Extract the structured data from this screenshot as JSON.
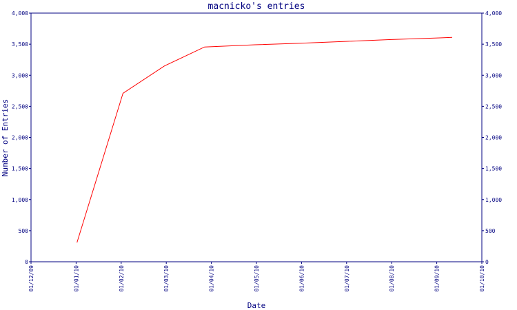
{
  "chart_data": {
    "type": "line",
    "title": "macnicko's entries",
    "xlabel": "Date",
    "ylabel": "Number of Entries",
    "x_tick_labels": [
      "01/12/09",
      "01/01/10",
      "01/02/10",
      "01/03/10",
      "01/04/10",
      "01/05/10",
      "01/06/10",
      "01/07/10",
      "01/08/10",
      "01/09/10",
      "01/10/10"
    ],
    "y_tick_labels": [
      "0",
      "500",
      "1,000",
      "1,500",
      "2,000",
      "2,500",
      "3,000",
      "3,500",
      "4,000"
    ],
    "y_ticks": [
      0,
      500,
      1000,
      1500,
      2000,
      2500,
      3000,
      3500,
      4000
    ],
    "ylim": [
      0,
      4000
    ],
    "xlim": [
      "2009-12-01",
      "2010-10-01"
    ],
    "grid": false,
    "series": [
      {
        "color": "#ff0000",
        "points": [
          {
            "x": "2010-01-01",
            "y": 310
          },
          {
            "x": "2010-02-01",
            "y": 2710
          },
          {
            "x": "2010-03-01",
            "y": 3150
          },
          {
            "x": "2010-03-28",
            "y": 3455
          },
          {
            "x": "2010-05-01",
            "y": 3490
          },
          {
            "x": "2010-06-01",
            "y": 3515
          },
          {
            "x": "2010-07-01",
            "y": 3545
          },
          {
            "x": "2010-08-01",
            "y": 3575
          },
          {
            "x": "2010-09-01",
            "y": 3600
          },
          {
            "x": "2010-09-11",
            "y": 3610
          }
        ]
      }
    ]
  }
}
